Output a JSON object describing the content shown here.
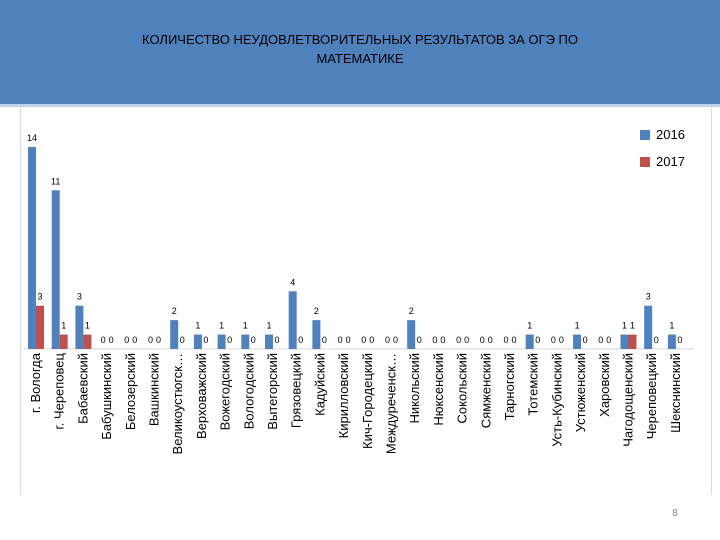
{
  "header": {
    "title": "КОЛИЧЕСТВО  НЕУДОВЛЕТВОРИТЕЛЬНЫХ РЕЗУЛЬТАТОВ ЗА ОГЭ  ПО\nМАТЕМАТИКЕ"
  },
  "page_number": "8",
  "colors": {
    "header_bg": "#4f81bd",
    "series_2016": "#4f81bd",
    "series_2017": "#c0504d"
  },
  "chart_data": {
    "type": "bar",
    "title": "",
    "xlabel": "",
    "ylabel": "",
    "ylim": [
      0,
      14
    ],
    "grid": false,
    "legend_position": "top-right",
    "categories": [
      "г. Вологда",
      "г. Череповец",
      "Бабаевский",
      "Бабушкинский",
      "Белозерский",
      "Вашкинский",
      "Великоустюгск…",
      "Верховажский",
      "Вожегодский",
      "Вологодский",
      "Вытегорский",
      "Грязовецкий",
      "Кадуйский",
      "Кирилловский",
      "Кич-Городецкий",
      "Междуреченск…",
      "Никольский",
      "Нюксенский",
      "Сокольский",
      "Сямженский",
      "Тарногский",
      "Тотемский",
      "Усть-Кубинский",
      "Устюженский",
      "Харовский",
      "Чагодощенский",
      "Череповецкий",
      "Шекснинский"
    ],
    "series": [
      {
        "name": "2016",
        "color": "#4f81bd",
        "values": [
          14,
          11,
          3,
          0,
          0,
          0,
          2,
          1,
          1,
          1,
          1,
          4,
          2,
          0,
          0,
          0,
          2,
          0,
          0,
          0,
          0,
          1,
          0,
          1,
          0,
          1,
          3,
          1
        ]
      },
      {
        "name": "2017",
        "color": "#c0504d",
        "values": [
          3,
          1,
          1,
          0,
          0,
          0,
          0,
          0,
          0,
          0,
          0,
          0,
          0,
          0,
          0,
          0,
          0,
          0,
          0,
          0,
          0,
          0,
          0,
          0,
          0,
          1,
          0,
          0
        ]
      }
    ]
  }
}
